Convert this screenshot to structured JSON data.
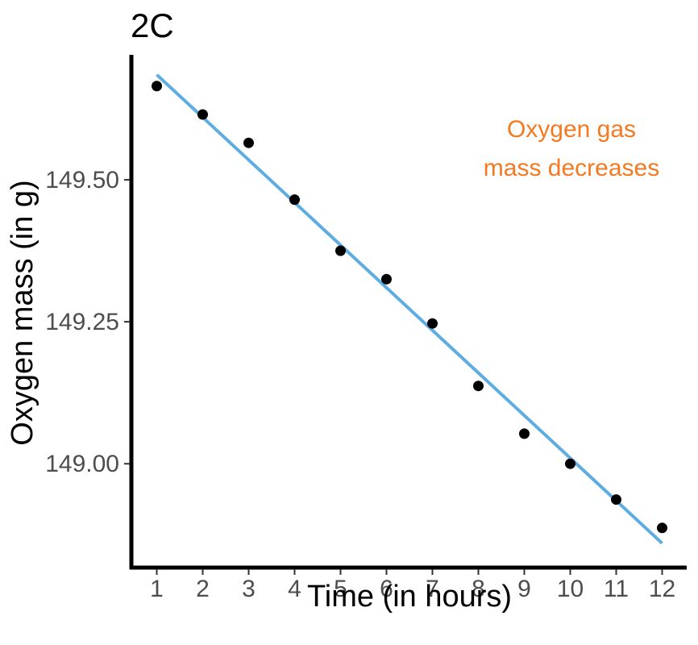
{
  "chart_data": {
    "type": "scatter",
    "title": "2C",
    "xlabel": "Time (in hours)",
    "ylabel": "Oxygen mass (in g)",
    "x": [
      1,
      2,
      3,
      4,
      5,
      6,
      7,
      8,
      9,
      10,
      11,
      12
    ],
    "y": [
      149.665,
      149.615,
      149.565,
      149.465,
      149.375,
      149.325,
      149.247,
      149.137,
      149.053,
      149.0,
      148.937,
      148.887
    ],
    "xticks": [
      "1",
      "2",
      "3",
      "4",
      "5",
      "6",
      "7",
      "8",
      "9",
      "10",
      "11",
      "12"
    ],
    "yticks": [
      "149.00",
      "149.25",
      "149.50"
    ],
    "ytick_values": [
      149.0,
      149.25,
      149.5
    ],
    "xlim": [
      0.5,
      12.5
    ],
    "ylim": [
      148.82,
      149.72
    ],
    "trend_line": {
      "x": [
        1,
        12
      ],
      "y": [
        149.685,
        148.86
      ],
      "color": "#5dade2"
    },
    "point_color": "#000000",
    "annotation": {
      "lines": [
        "Oxygen gas",
        "mass decreases"
      ],
      "color": "#f47920"
    },
    "grid": false
  }
}
